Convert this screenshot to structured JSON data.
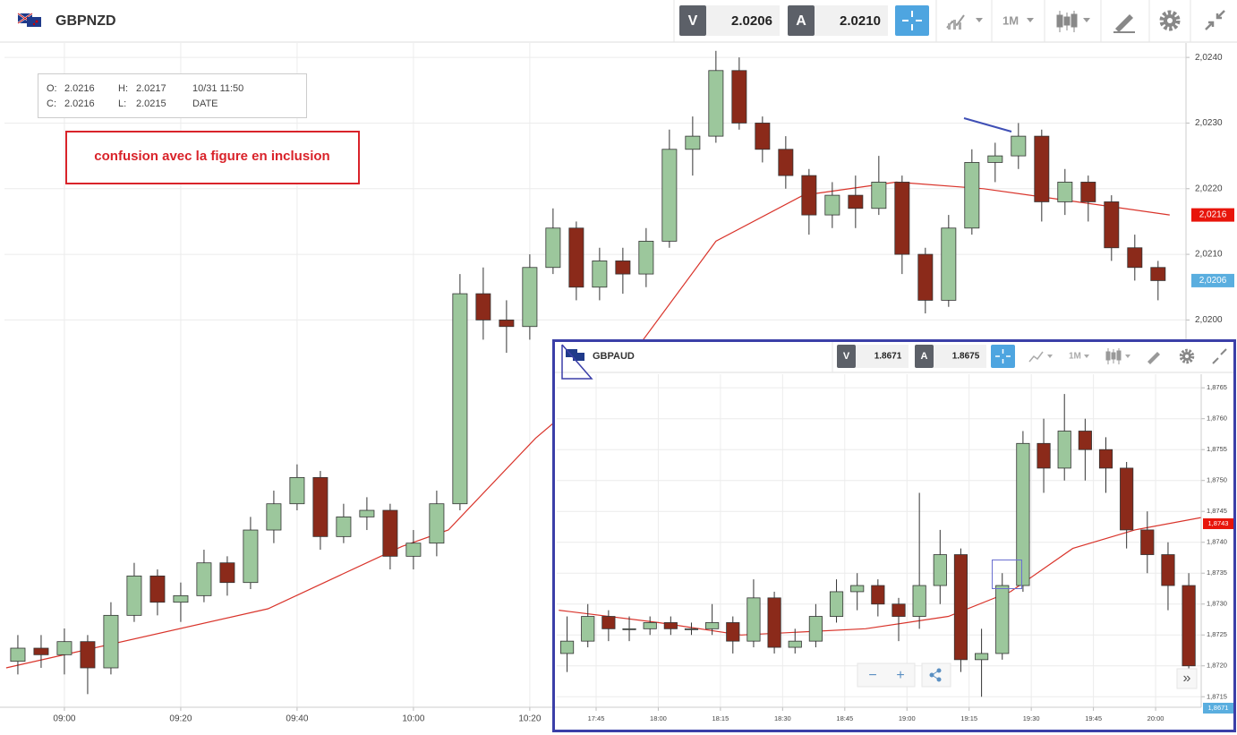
{
  "header": {
    "symbol": "GBPNZD",
    "bid_label": "V",
    "bid": "2.0206",
    "ask_label": "A",
    "ask": "2.0210",
    "timeframe": "1M"
  },
  "ohlc_box": {
    "open_label": "O:",
    "open": "2.0216",
    "high_label": "H:",
    "high": "2.0217",
    "time": "10/31 11:50",
    "close_label": "C:",
    "close": "2.0216",
    "low_label": "L:",
    "low": "2.0215",
    "date_label": "DATE"
  },
  "annotation": "confusion avec la figure en inclusion",
  "inset_header": {
    "symbol": "GBPAUD",
    "bid_label": "V",
    "bid": "1.8671",
    "ask_label": "A",
    "ask": "1.8675",
    "timeframe": "1M"
  },
  "inset_controls": {
    "zoom_out": "−",
    "zoom_in": "+",
    "expand": "»"
  },
  "chart_data": [
    {
      "type": "candlestick",
      "up_color": "#9cc79c",
      "down_color": "#8b2a1a",
      "grid": true,
      "xlim": [
        529.7,
        732.8
      ],
      "ylim": [
        2.0141,
        2.02422
      ],
      "xticks": [
        {
          "value": 540,
          "label": "09:00"
        },
        {
          "value": 560,
          "label": "09:20"
        },
        {
          "value": 580,
          "label": "09:40"
        },
        {
          "value": 600,
          "label": "10:00"
        },
        {
          "value": 620,
          "label": "10:20"
        }
      ],
      "yticks": [
        {
          "value": 2.024,
          "label": "2,0240"
        },
        {
          "value": 2.023,
          "label": "2,0230"
        },
        {
          "value": 2.022,
          "label": "2,0220"
        },
        {
          "value": 2.021,
          "label": "2,0210"
        },
        {
          "value": 2.02,
          "label": "2,0200"
        }
      ],
      "x": [
        532,
        536,
        540,
        544,
        548,
        552,
        556,
        560,
        564,
        568,
        572,
        576,
        580,
        584,
        588,
        592,
        596,
        600,
        604,
        608,
        612,
        616,
        620,
        624,
        628,
        632,
        636,
        640,
        644,
        648,
        652,
        656,
        660,
        664,
        668,
        672,
        676,
        680,
        684,
        688,
        692,
        696,
        700,
        704,
        708,
        712,
        716,
        720,
        724,
        728
      ],
      "open": [
        2.0148,
        2.015,
        2.0149,
        2.0151,
        2.0147,
        2.0155,
        2.0161,
        2.0157,
        2.0158,
        2.0163,
        2.016,
        2.0168,
        2.0172,
        2.0176,
        2.0167,
        2.017,
        2.0171,
        2.0164,
        2.0166,
        2.0172,
        2.0204,
        2.02,
        2.0199,
        2.0208,
        2.0214,
        2.0205,
        2.0209,
        2.0207,
        2.0212,
        2.0226,
        2.0228,
        2.0238,
        2.023,
        2.0226,
        2.0222,
        2.0216,
        2.0219,
        2.0217,
        2.0221,
        2.021,
        2.0203,
        2.0214,
        2.0224,
        2.0225,
        2.0228,
        2.0218,
        2.0221,
        2.0218,
        2.0211,
        2.0208
      ],
      "high": [
        2.0152,
        2.0152,
        2.0153,
        2.0152,
        2.0157,
        2.0163,
        2.0162,
        2.016,
        2.0165,
        2.0164,
        2.017,
        2.0174,
        2.0178,
        2.0177,
        2.0172,
        2.0173,
        2.0172,
        2.0168,
        2.0174,
        2.0207,
        2.0208,
        2.0203,
        2.021,
        2.0217,
        2.0215,
        2.0211,
        2.0211,
        2.0214,
        2.0229,
        2.0231,
        2.0241,
        2.024,
        2.0231,
        2.0228,
        2.0223,
        2.0221,
        2.0222,
        2.0225,
        2.0222,
        2.0211,
        2.0216,
        2.0226,
        2.0227,
        2.023,
        2.0229,
        2.0223,
        2.0222,
        2.0219,
        2.0213,
        2.0209
      ],
      "low": [
        2.0146,
        2.0147,
        2.0146,
        2.0143,
        2.0146,
        2.0154,
        2.0155,
        2.0154,
        2.0157,
        2.0158,
        2.0159,
        2.0166,
        2.0171,
        2.0165,
        2.0166,
        2.0168,
        2.0162,
        2.0162,
        2.0164,
        2.0171,
        2.0197,
        2.0195,
        2.0197,
        2.0207,
        2.0203,
        2.0203,
        2.0204,
        2.0205,
        2.0211,
        2.0222,
        2.0227,
        2.0229,
        2.0224,
        2.022,
        2.0213,
        2.0214,
        2.0214,
        2.0216,
        2.0207,
        2.0201,
        2.0202,
        2.0213,
        2.0221,
        2.0223,
        2.0215,
        2.0216,
        2.0215,
        2.0209,
        2.0206,
        2.0203
      ],
      "close": [
        2.015,
        2.0149,
        2.0151,
        2.0147,
        2.0155,
        2.0161,
        2.0157,
        2.0158,
        2.0163,
        2.016,
        2.0168,
        2.0172,
        2.0176,
        2.0167,
        2.017,
        2.0171,
        2.0164,
        2.0166,
        2.0172,
        2.0204,
        2.02,
        2.0199,
        2.0208,
        2.0214,
        2.0205,
        2.0209,
        2.0207,
        2.0212,
        2.0226,
        2.0228,
        2.0238,
        2.023,
        2.0226,
        2.0222,
        2.0216,
        2.0219,
        2.0217,
        2.0221,
        2.021,
        2.0203,
        2.0214,
        2.0224,
        2.0225,
        2.0228,
        2.0218,
        2.0221,
        2.0218,
        2.0211,
        2.0208,
        2.0206
      ],
      "ma": {
        "color": "#d9342b",
        "x": [
          530,
          575,
          598,
          606,
          621,
          637,
          652,
          667,
          683,
          698,
          714,
          730
        ],
        "values": [
          2.0147,
          2.0156,
          2.01655,
          2.0168,
          2.0182,
          2.0194,
          2.0212,
          2.0219,
          2.0221,
          2.022,
          2.0218,
          2.0216
        ]
      },
      "price_tags": [
        {
          "value": 2.0216,
          "label": "2,0216",
          "color": "#e8150b"
        },
        {
          "value": 2.0206,
          "label": "2,0206",
          "color": "#5aaedf"
        }
      ]
    },
    {
      "type": "candlestick",
      "up_color": "#9cc79c",
      "down_color": "#8b2a1a",
      "grid": true,
      "xlim": [
        1055.5,
        1211
      ],
      "ylim": [
        1.87133,
        1.87672
      ],
      "xticks": [
        {
          "value": 1065,
          "label": "17:45"
        },
        {
          "value": 1080,
          "label": "18:00"
        },
        {
          "value": 1095,
          "label": "18:15"
        },
        {
          "value": 1110,
          "label": "18:30"
        },
        {
          "value": 1125,
          "label": "18:45"
        },
        {
          "value": 1140,
          "label": "19:00"
        },
        {
          "value": 1155,
          "label": "19:15"
        },
        {
          "value": 1170,
          "label": "19:30"
        },
        {
          "value": 1185,
          "label": "19:45"
        },
        {
          "value": 1200,
          "label": "20:00"
        }
      ],
      "yticks": [
        {
          "value": 1.8765,
          "label": "1,8765"
        },
        {
          "value": 1.876,
          "label": "1,8760"
        },
        {
          "value": 1.8755,
          "label": "1,8755"
        },
        {
          "value": 1.875,
          "label": "1,8750"
        },
        {
          "value": 1.8745,
          "label": "1,8745"
        },
        {
          "value": 1.874,
          "label": "1,8740"
        },
        {
          "value": 1.8735,
          "label": "1,8735"
        },
        {
          "value": 1.873,
          "label": "1,8730"
        },
        {
          "value": 1.8725,
          "label": "1,8725"
        },
        {
          "value": 1.872,
          "label": "1,8720"
        },
        {
          "value": 1.8715,
          "label": "1,8715"
        }
      ],
      "x": [
        1058,
        1063,
        1068,
        1073,
        1078,
        1083,
        1088,
        1093,
        1098,
        1103,
        1108,
        1113,
        1118,
        1123,
        1128,
        1133,
        1138,
        1143,
        1148,
        1153,
        1158,
        1163,
        1168,
        1173,
        1178,
        1183,
        1188,
        1193,
        1198,
        1203,
        1208
      ],
      "open": [
        1.8722,
        1.8724,
        1.8728,
        1.8726,
        1.8726,
        1.8727,
        1.8726,
        1.8726,
        1.8727,
        1.8724,
        1.8731,
        1.8723,
        1.8724,
        1.8728,
        1.8732,
        1.8733,
        1.873,
        1.8728,
        1.8733,
        1.8738,
        1.8721,
        1.8722,
        1.8733,
        1.8756,
        1.8752,
        1.8758,
        1.8755,
        1.8752,
        1.8742,
        1.8738,
        1.8733
      ],
      "high": [
        1.8728,
        1.873,
        1.8729,
        1.8728,
        1.8728,
        1.8728,
        1.8727,
        1.873,
        1.8728,
        1.8734,
        1.8732,
        1.8726,
        1.873,
        1.8734,
        1.8735,
        1.8734,
        1.8731,
        1.8748,
        1.8742,
        1.8739,
        1.8726,
        1.8735,
        1.8758,
        1.876,
        1.8764,
        1.876,
        1.8757,
        1.8753,
        1.8745,
        1.874,
        1.8735
      ],
      "low": [
        1.8719,
        1.8723,
        1.8724,
        1.8724,
        1.8725,
        1.8725,
        1.8725,
        1.8725,
        1.8722,
        1.8723,
        1.8722,
        1.8722,
        1.8723,
        1.8727,
        1.8729,
        1.8728,
        1.8724,
        1.8726,
        1.873,
        1.8719,
        1.8715,
        1.8721,
        1.8732,
        1.8748,
        1.875,
        1.875,
        1.8748,
        1.8739,
        1.8735,
        1.8729,
        1.8718
      ],
      "close": [
        1.8724,
        1.8728,
        1.8726,
        1.8726,
        1.8727,
        1.8726,
        1.8726,
        1.8727,
        1.8724,
        1.8731,
        1.8723,
        1.8724,
        1.8728,
        1.8732,
        1.8733,
        1.873,
        1.8728,
        1.8733,
        1.8738,
        1.8721,
        1.8722,
        1.8733,
        1.8756,
        1.8752,
        1.8758,
        1.8755,
        1.8752,
        1.8742,
        1.8738,
        1.8733,
        1.872
      ],
      "ma": {
        "color": "#d9342b",
        "x": [
          1056,
          1080,
          1100,
          1130,
          1150,
          1165,
          1180,
          1195,
          1211
        ],
        "values": [
          1.8729,
          1.8727,
          1.8725,
          1.8726,
          1.8728,
          1.8732,
          1.8739,
          1.8742,
          1.8744
        ]
      },
      "price_tags": [
        {
          "value": 1.8743,
          "label": "1,8743",
          "color": "#e8150b"
        },
        {
          "value": 1.8671,
          "label": "1,8671",
          "color": "#5aaedf"
        }
      ]
    }
  ]
}
